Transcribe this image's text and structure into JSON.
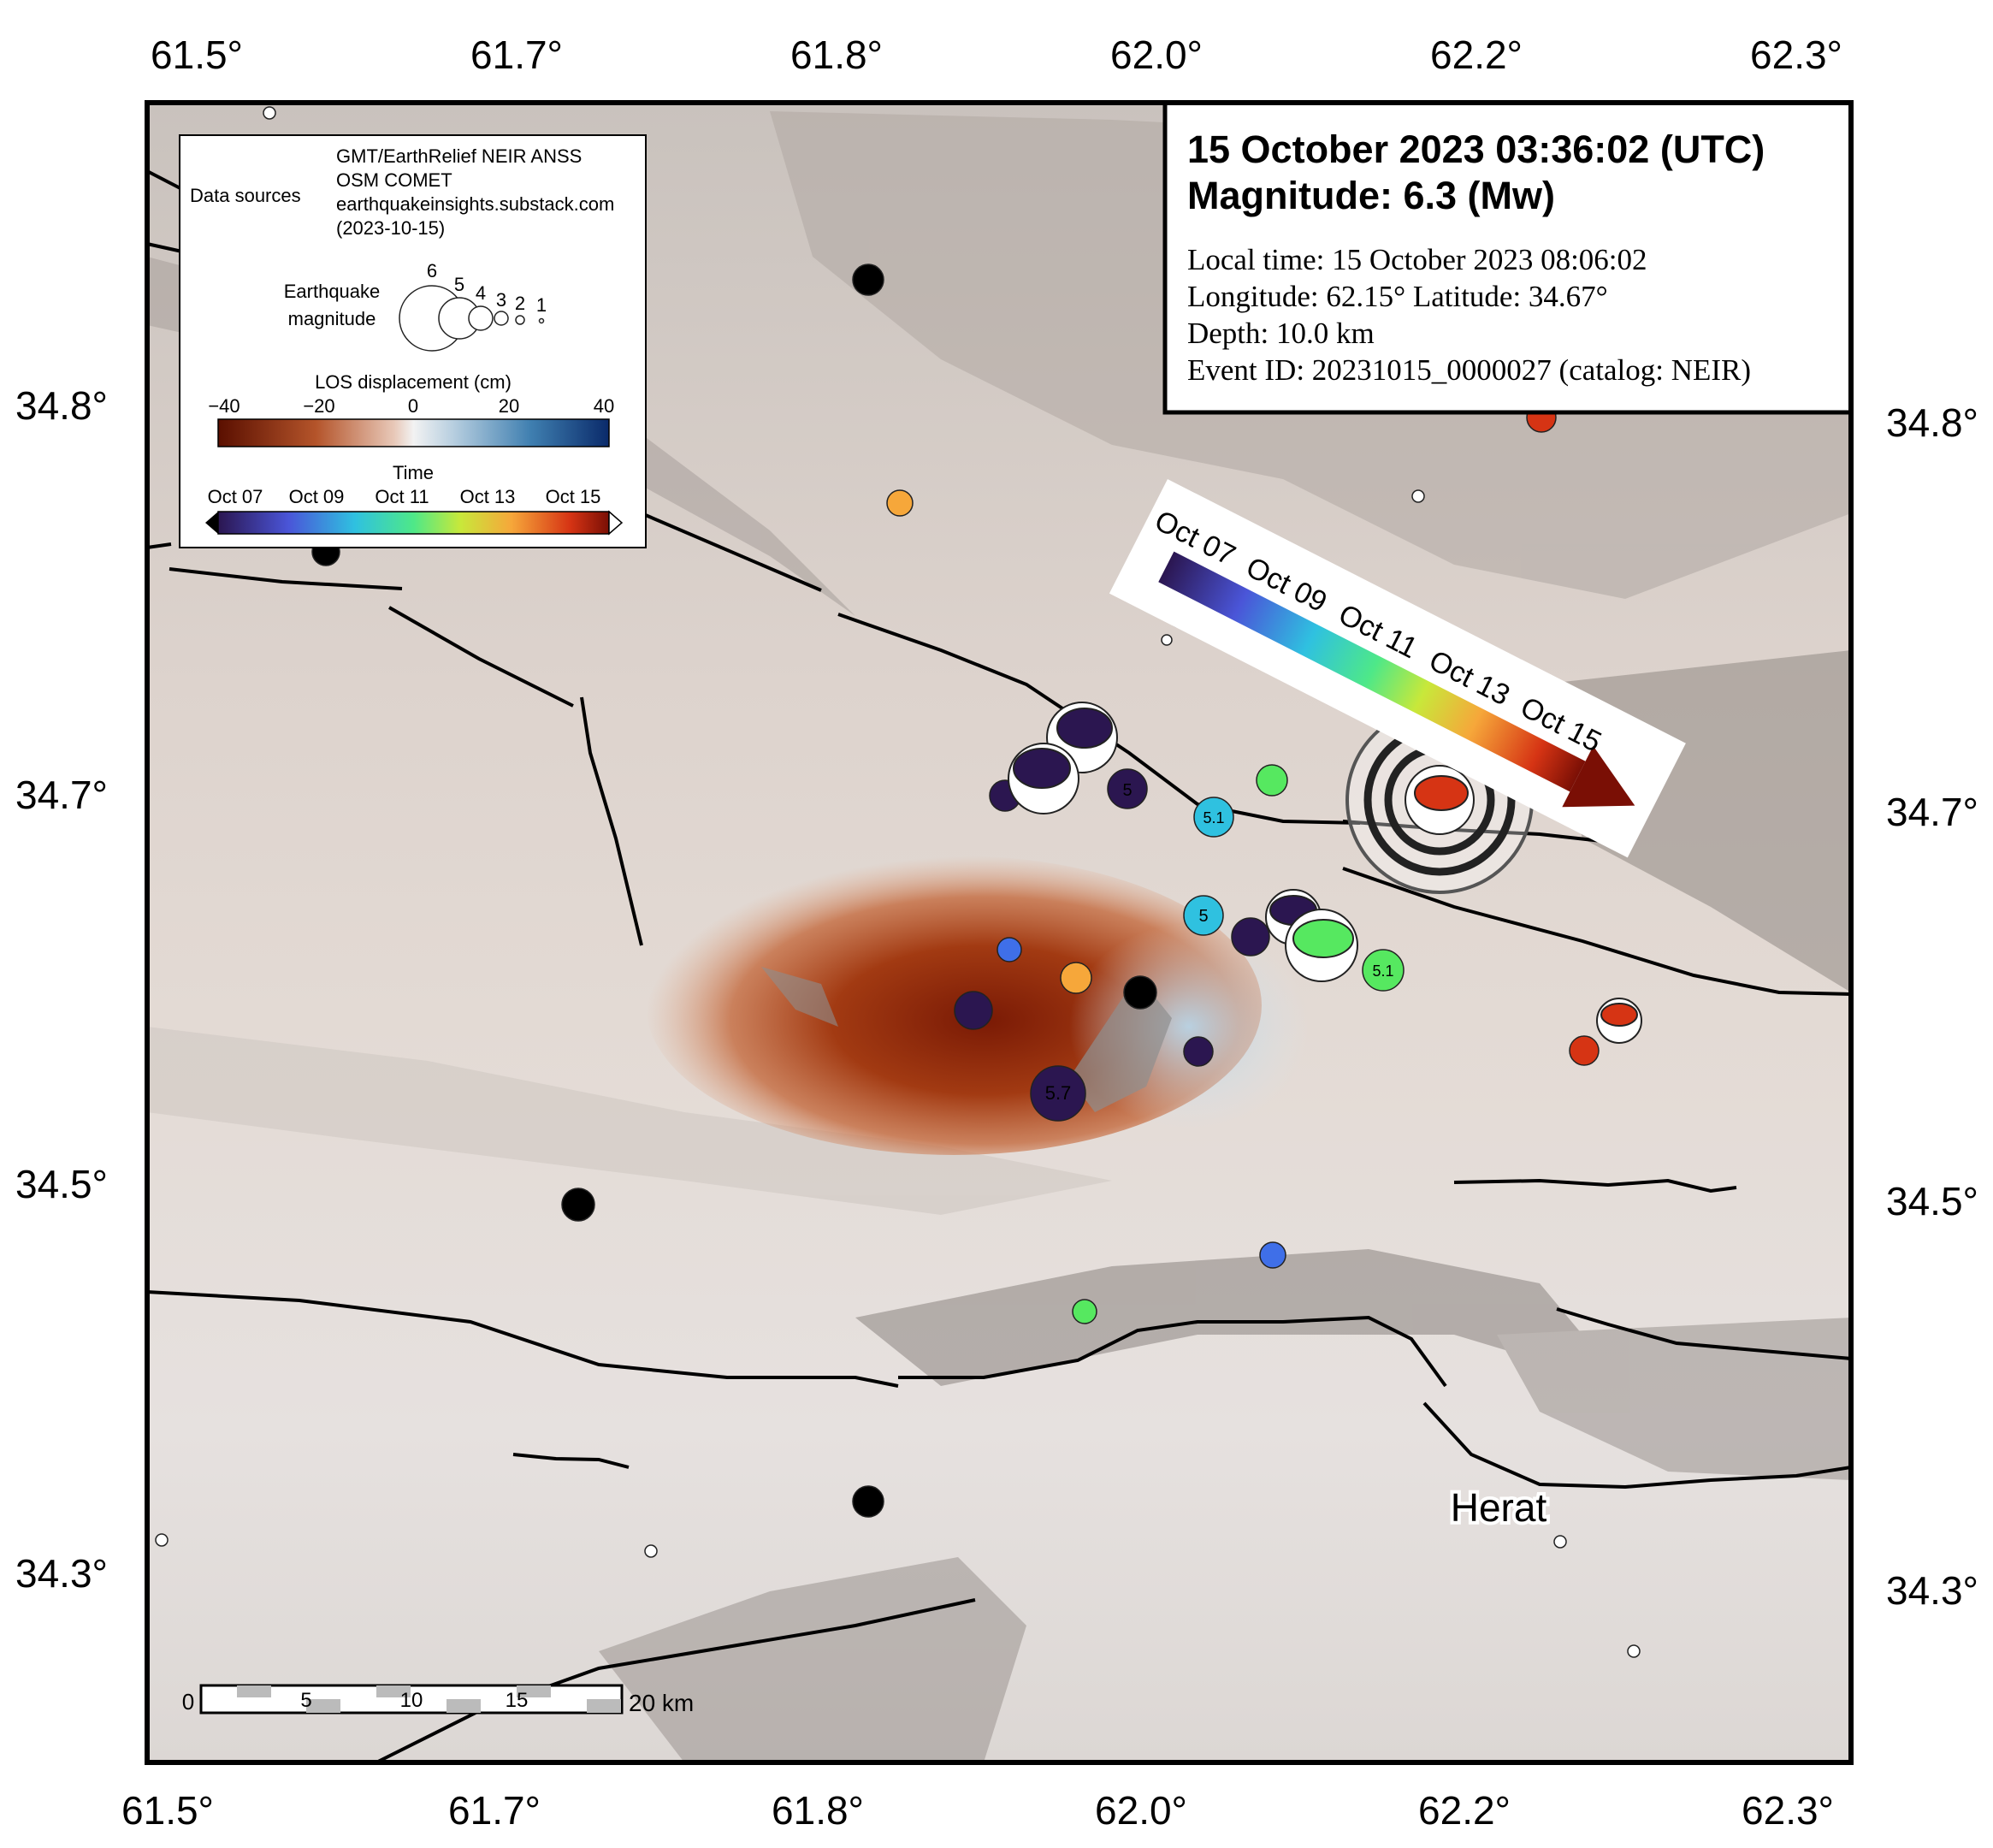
{
  "header": {
    "datetime": "15 October 2023 03:36:02 (UTC)",
    "magnitude": "Magnitude: 6.3 (Mw)",
    "local_time": "Local time: 15 October 2023 08:06:02",
    "coords": "Longitude: 62.15°  Latitude: 34.67°",
    "depth": "Depth: 10.0 km",
    "event_id": "Event ID: 20231015_0000027 (catalog: NEIR)"
  },
  "axes": {
    "top_ticks": [
      "61.5°",
      "61.7°",
      "61.8°",
      "62.0°",
      "62.2°",
      "62.3°"
    ],
    "bottom_ticks": [
      "61.5°",
      "61.7°",
      "61.8°",
      "62.0°",
      "62.2°",
      "62.3°"
    ],
    "left_ticks": [
      "34.8°",
      "34.7°",
      "34.5°",
      "34.3°"
    ],
    "right_ticks": [
      "34.8°",
      "34.7°",
      "34.5°",
      "34.3°"
    ]
  },
  "legend": {
    "data_sources_label": "Data sources",
    "sources": [
      "GMT/EarthRelief NEIR ANSS",
      "OSM COMET",
      "earthquakeinsights.substack.com",
      "(2023-10-15)"
    ],
    "magnitude_label_1": "Earthquake",
    "magnitude_label_2": "magnitude",
    "magnitudes": [
      "6",
      "5",
      "4",
      "3",
      "2",
      "1"
    ],
    "los_title": "LOS displacement (cm)",
    "los_ticks": [
      "−40",
      "−20",
      "0",
      "20",
      "40"
    ],
    "time_title": "Time",
    "time_ticks": [
      "Oct 07",
      "Oct 09",
      "Oct 11",
      "Oct 13",
      "Oct 15"
    ]
  },
  "time_arrow": {
    "ticks": [
      "Oct 07",
      "Oct 09",
      "Oct 11",
      "Oct 13",
      "Oct 15"
    ]
  },
  "city": {
    "name": "Herat"
  },
  "scalebar": {
    "ticks": [
      "0",
      "5",
      "10",
      "15"
    ],
    "end_label": "20 km"
  },
  "event_labels": {
    "e1": "5",
    "e2": "5.1",
    "e3": "5",
    "e4": "5.1",
    "e5": "5.7"
  },
  "colors": {
    "oct07": "#2b1650",
    "oct09": "#3f6fe8",
    "oct11": "#2fc1e0",
    "oct12": "#56e860",
    "oct13": "#f6a73a",
    "oct15": "#d63414"
  }
}
